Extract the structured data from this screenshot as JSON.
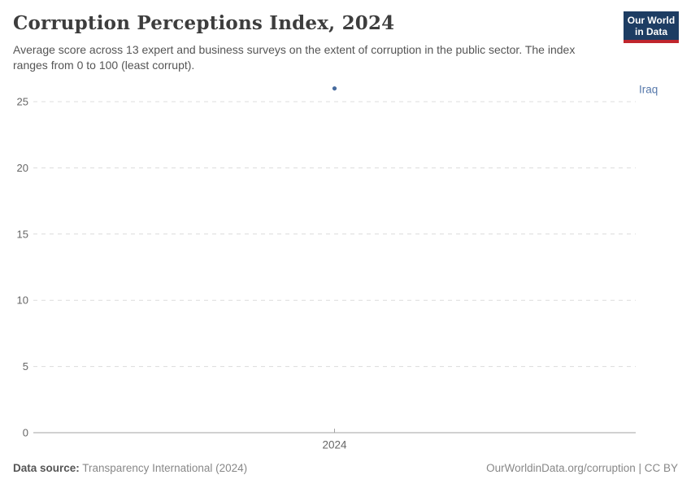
{
  "header": {
    "title": "Corruption Perceptions Index, 2024",
    "subtitle": "Average score across 13 expert and business surveys on the extent of corruption in the public sector. The index ranges from 0 to 100 (least corrupt).",
    "logo": {
      "line1": "Our World",
      "line2": "in Data",
      "bg_color": "#1d3d63",
      "underline_color": "#c0262d"
    }
  },
  "chart_data": {
    "type": "scatter",
    "title": "Corruption Perceptions Index, 2024",
    "x": [
      "2024"
    ],
    "series": [
      {
        "name": "Iraq",
        "values": [
          26
        ],
        "color": "#476b9e",
        "label_color": "#5779ab"
      }
    ],
    "xlabel": "",
    "ylabel": "",
    "ylim": [
      0,
      25
    ],
    "yticks": [
      0,
      5,
      10,
      15,
      20,
      25
    ],
    "grid": "horizontal-dashed",
    "grid_color": "#dcdcdc",
    "axis_color": "#a3a3a3",
    "tick_label_color": "#666666",
    "legend_position": "entity-label-right"
  },
  "footer": {
    "source_label": "Data source:",
    "source_value": "Transparency International (2024)",
    "credit": "OurWorldinData.org/corruption | CC BY"
  }
}
